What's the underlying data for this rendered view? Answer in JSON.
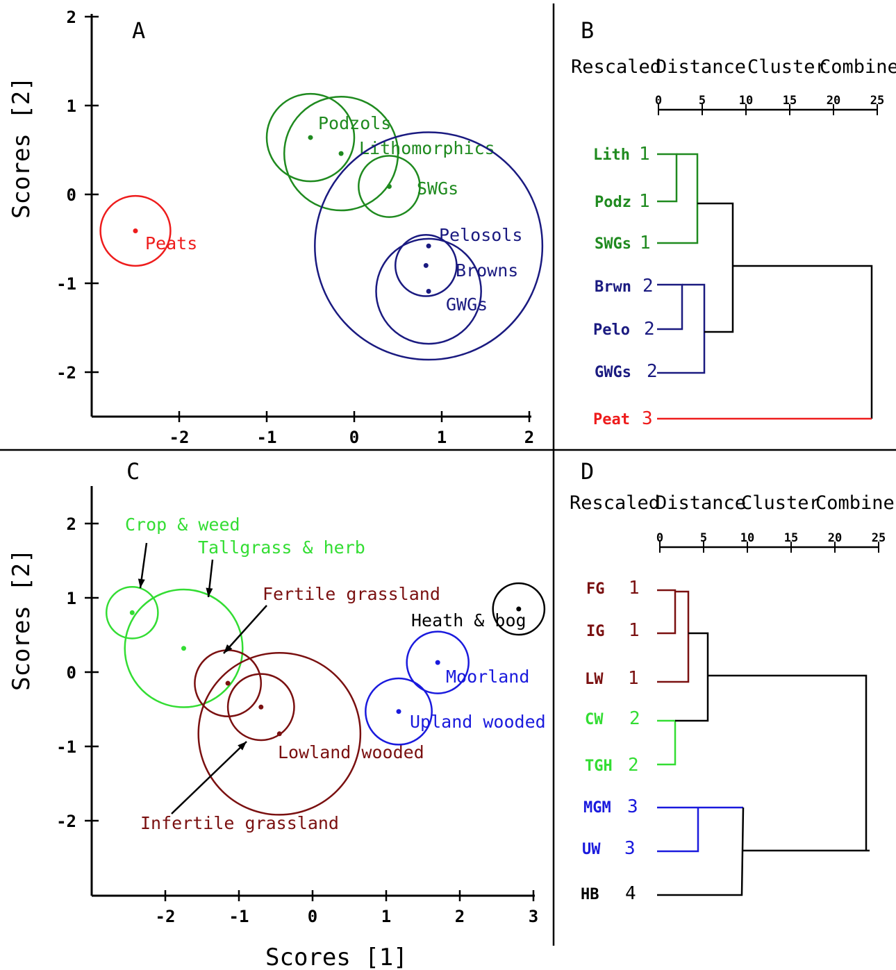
{
  "colors": {
    "dark_green": "#1f8a1f",
    "dark_blue": "#1a1a80",
    "red": "#ee1c1c",
    "bright_green": "#33dd33",
    "dark_red": "#7a1010",
    "blue": "#1a1add",
    "black": "#000000"
  },
  "axis_titles": {
    "y_A": "Scores [2]",
    "y_C": "Scores [2]",
    "x_C": "Scores [1]"
  },
  "chart_data": [
    {
      "panel": "A",
      "type": "scatter",
      "xlim": [
        -3,
        2
      ],
      "ylim": [
        -2.5,
        2
      ],
      "xticks": [
        "-2",
        "-1",
        "0",
        "1",
        "2"
      ],
      "yticks": [
        "2",
        "1",
        "0",
        "-1",
        "-2"
      ],
      "points": [
        {
          "name": "Peats",
          "x": -2.5,
          "y": -0.41,
          "r": 0.4,
          "color": "red"
        },
        {
          "name": "Podzols",
          "x": -0.5,
          "y": 0.64,
          "r": 0.5,
          "color": "dark_green"
        },
        {
          "name": "Lithomorphics",
          "x": -0.15,
          "y": 0.46,
          "r": 0.65,
          "color": "dark_green"
        },
        {
          "name": "SWGs",
          "x": 0.4,
          "y": 0.09,
          "r": 0.35,
          "color": "dark_green"
        },
        {
          "name": "Pelosols",
          "x": 0.85,
          "y": -0.58,
          "r": 1.3,
          "color": "dark_blue"
        },
        {
          "name": "Browns",
          "x": 0.82,
          "y": -0.8,
          "r": 0.35,
          "color": "dark_blue"
        },
        {
          "name": "GWGs",
          "x": 0.85,
          "y": -1.09,
          "r": 0.6,
          "color": "dark_blue"
        }
      ]
    },
    {
      "panel": "B",
      "type": "dendrogram",
      "title_parts": [
        "Rescaled",
        "Distance",
        "Cluster",
        "Combine"
      ],
      "scale_ticks": [
        "0",
        "5",
        "10",
        "15",
        "20",
        "25"
      ],
      "leaves": [
        {
          "name": "Lith",
          "cluster": "1",
          "color": "dark_green"
        },
        {
          "name": "Podz",
          "cluster": "1",
          "color": "dark_green"
        },
        {
          "name": "SWGs",
          "cluster": "1",
          "color": "dark_green"
        },
        {
          "name": "Brwn",
          "cluster": "2",
          "color": "dark_blue"
        },
        {
          "name": "Pelo",
          "cluster": "2",
          "color": "dark_blue"
        },
        {
          "name": "GWGs",
          "cluster": "2",
          "color": "dark_blue"
        },
        {
          "name": "Peat",
          "cluster": "3",
          "color": "red"
        }
      ]
    },
    {
      "panel": "C",
      "type": "scatter",
      "xlim": [
        -3,
        3
      ],
      "ylim": [
        -3,
        2.5
      ],
      "xticks": [
        "-2",
        "-1",
        "0",
        "1",
        "2",
        "3"
      ],
      "yticks": [
        "2",
        "1",
        "0",
        "-1",
        "-2"
      ],
      "xlabel": "Scores [1]",
      "points": [
        {
          "name": "Crop & weed",
          "x": -2.45,
          "y": 0.8,
          "r": 0.35,
          "color": "bright_green"
        },
        {
          "name": "Tallgrass & herb",
          "x": -1.75,
          "y": 0.32,
          "r": 0.8,
          "color": "bright_green"
        },
        {
          "name": "Fertile grassland",
          "x": -1.15,
          "y": -0.15,
          "r": 0.45,
          "color": "dark_red"
        },
        {
          "name": "Infertile grassland",
          "x": -0.7,
          "y": -0.47,
          "r": 0.45,
          "color": "dark_red"
        },
        {
          "name": "Lowland wooded",
          "x": -0.45,
          "y": -0.83,
          "r": 1.1,
          "color": "dark_red"
        },
        {
          "name": "Moorland",
          "x": 1.7,
          "y": 0.13,
          "r": 0.42,
          "color": "blue"
        },
        {
          "name": "Upland wooded",
          "x": 1.17,
          "y": -0.53,
          "r": 0.45,
          "color": "blue"
        },
        {
          "name": "Heath & bog",
          "x": 2.8,
          "y": 0.85,
          "r": 0.35,
          "color": "black"
        }
      ]
    },
    {
      "panel": "D",
      "type": "dendrogram",
      "title_parts": [
        "Rescaled",
        "Distance",
        "Cluster",
        "Combine"
      ],
      "scale_ticks": [
        "0",
        "5",
        "10",
        "15",
        "20",
        "25"
      ],
      "leaves": [
        {
          "name": "FG",
          "cluster": "1",
          "color": "dark_red"
        },
        {
          "name": "IG",
          "cluster": "1",
          "color": "dark_red"
        },
        {
          "name": "LW",
          "cluster": "1",
          "color": "dark_red"
        },
        {
          "name": "CW",
          "cluster": "2",
          "color": "bright_green"
        },
        {
          "name": "TGH",
          "cluster": "2",
          "color": "bright_green"
        },
        {
          "name": "MGM",
          "cluster": "3",
          "color": "blue"
        },
        {
          "name": "UW",
          "cluster": "3",
          "color": "blue"
        },
        {
          "name": "HB",
          "cluster": "4",
          "color": "black"
        }
      ]
    }
  ]
}
